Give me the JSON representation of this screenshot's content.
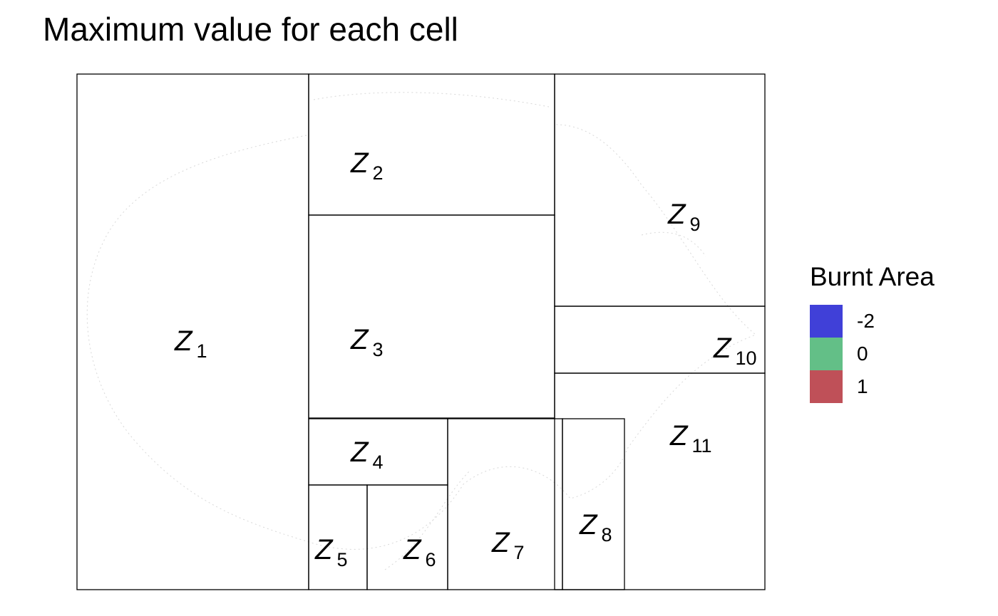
{
  "chart_data": {
    "type": "heatmap",
    "title": "Maximum value for each cell",
    "subtitle": "",
    "xlabel": "",
    "ylabel": "",
    "grid": false,
    "legend": {
      "title": "Burnt Area",
      "placement": "right",
      "entries": [
        {
          "label": "-2",
          "value": -2,
          "color": "#4040d8"
        },
        {
          "label": "0",
          "value": 0,
          "color": "#63bf87"
        },
        {
          "label": "1",
          "value": 1,
          "color": "#bf5058"
        }
      ]
    },
    "cells": [
      {
        "id": "z1",
        "letter": "Z",
        "sub": "1"
      },
      {
        "id": "z2",
        "letter": "Z",
        "sub": "2"
      },
      {
        "id": "z3",
        "letter": "Z",
        "sub": "3"
      },
      {
        "id": "z4",
        "letter": "Z",
        "sub": "4"
      },
      {
        "id": "z5",
        "letter": "Z",
        "sub": "5"
      },
      {
        "id": "z6",
        "letter": "Z",
        "sub": "6"
      },
      {
        "id": "z7",
        "letter": "Z",
        "sub": "7"
      },
      {
        "id": "z8",
        "letter": "Z",
        "sub": "8"
      },
      {
        "id": "z9",
        "letter": "Z",
        "sub": "9"
      },
      {
        "id": "z10",
        "letter": "Z",
        "sub": "10"
      },
      {
        "id": "z11",
        "letter": "Z",
        "sub": "11"
      }
    ]
  }
}
